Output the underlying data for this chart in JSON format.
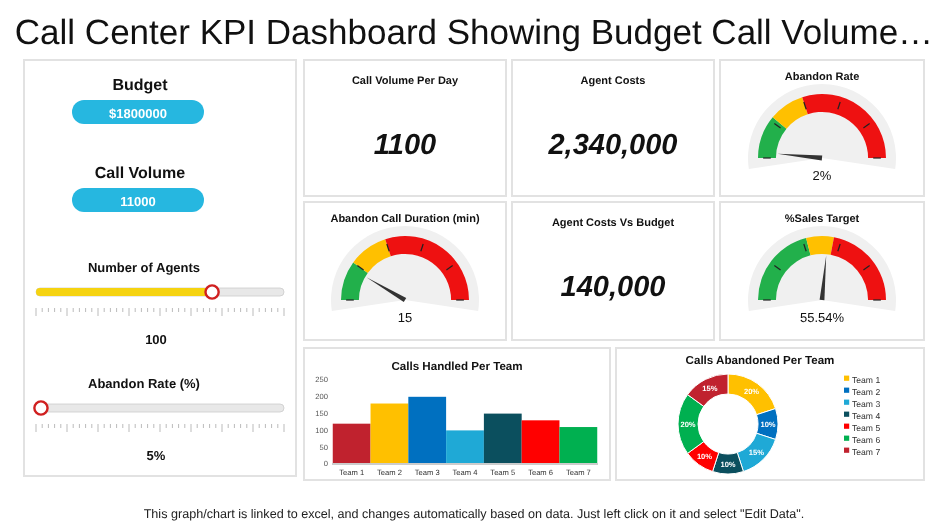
{
  "chart_data": [
    {
      "type": "other",
      "title": "Call Center KPI Dashboard Showing Budget Call Volume…",
      "annotations": [
        "This graph/chart is linked to excel, and changes automatically based on data. Just left click on it and select \"Edit Data\"."
      ]
    },
    {
      "type": "other",
      "title": "Budget",
      "annotations": [
        "$1800000"
      ]
    },
    {
      "type": "other",
      "title": "Call Volume",
      "annotations": [
        "11000"
      ]
    },
    {
      "type": "other",
      "title": "Number of Agents",
      "annotations": [
        "100"
      ]
    },
    {
      "type": "other",
      "title": "Abandon Rate (%)",
      "annotations": [
        "5%"
      ]
    },
    {
      "type": "other",
      "title": "Call Volume Per Day",
      "annotations": [
        "1100"
      ]
    },
    {
      "type": "other",
      "title": "Agent Costs",
      "annotations": [
        "2,340,000"
      ]
    },
    {
      "type": "other",
      "title": "Abandon Rate",
      "annotations": [
        "2%"
      ]
    },
    {
      "type": "other",
      "title": "Abandon Call Duration (min)",
      "annotations": [
        "15"
      ]
    },
    {
      "type": "other",
      "title": "Agent Costs Vs Budget",
      "annotations": [
        "140,000"
      ]
    },
    {
      "type": "other",
      "title": "%Sales Target",
      "annotations": [
        "55.54%"
      ]
    },
    {
      "type": "bar",
      "title": "Calls Handled Per Team",
      "categories": [
        "Team 1",
        "Team 2",
        "Team 3",
        "Team 4",
        "Team 5",
        "Team 6",
        "Team 7"
      ],
      "values": [
        120,
        180,
        200,
        100,
        150,
        130,
        110
      ],
      "colors": [
        "#c0222e",
        "#ffc000",
        "#0070c0",
        "#1fa9d6",
        "#0b4f5e",
        "#ff0000",
        "#00b050"
      ],
      "ylim": [
        0,
        250
      ],
      "yticks": [
        0,
        50,
        100,
        150,
        200,
        250
      ],
      "grid": false
    },
    {
      "type": "donut",
      "title": "Calls Abandoned Per Team",
      "categories": [
        "Team 1",
        "Team 2",
        "Team 3",
        "Team 4",
        "Team 5",
        "Team 6",
        "Team 7"
      ],
      "values": [
        20,
        10,
        15,
        10,
        10,
        20,
        15
      ],
      "colors": [
        "#ffc000",
        "#0070c0",
        "#1fa9d6",
        "#0b4f5e",
        "#ff0000",
        "#00b050",
        "#c0222e"
      ],
      "value_labels": [
        "20%",
        "10%",
        "15%",
        "10%",
        "10%",
        "20%",
        "15%"
      ],
      "legend": "right"
    }
  ]
}
